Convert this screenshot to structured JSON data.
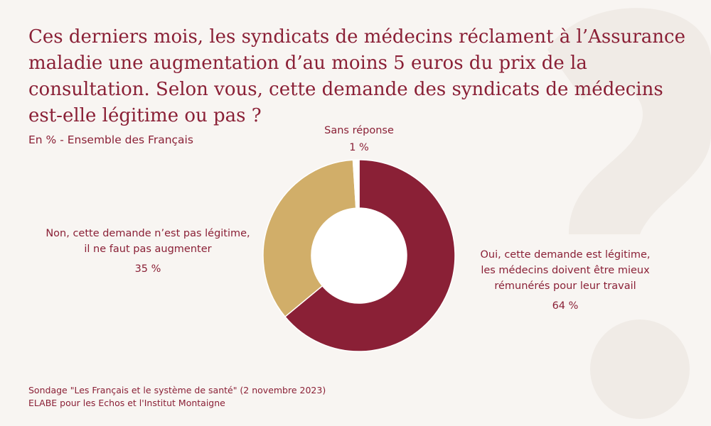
{
  "chart_data": {
    "type": "pie",
    "donut": true,
    "title": "Ces derniers mois, les syndicats de médecins réclament à l’Assurance maladie une augmentation d’au moins 5 euros du prix de la consultation. Selon vous, cette demande des syndicats de médecins est-elle légitime ou pas ?",
    "subtitle": "En % - Ensemble des Français",
    "slices": [
      {
        "label": "Oui, cette demande est légitime,\nles médecins doivent être mieux\nrémunérés pour leur travail",
        "value": 64,
        "value_label": "64 %",
        "color": "#8a2036"
      },
      {
        "label": "Non, cette demande n’est pas légitime,\nil ne faut pas augmenter",
        "value": 35,
        "value_label": "35 %",
        "color": "#d1ae69"
      },
      {
        "label": "Sans réponse",
        "value": 1,
        "value_label": "1 %",
        "color": "#ffffff"
      }
    ],
    "source": [
      "Sondage \"Les Français et le système de santé\" (2 novembre 2023)",
      "ELABE pour les Echos et l'Institut Montaigne"
    ]
  },
  "colors": {
    "background": "#f8f5f2",
    "text": "#8a2036"
  }
}
